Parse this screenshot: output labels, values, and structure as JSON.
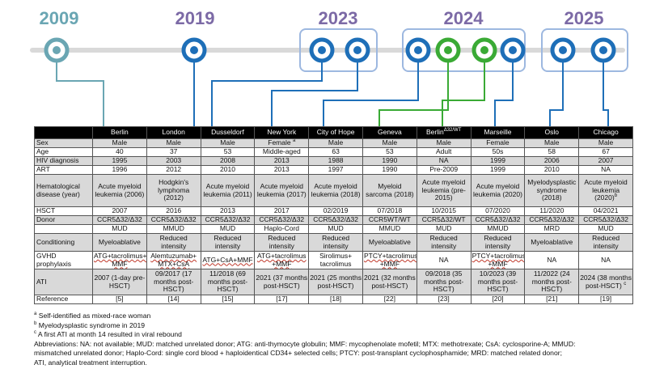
{
  "timeline": {
    "years": [
      {
        "label": "2009",
        "color": "#6aa6b3"
      },
      {
        "label": "2019",
        "color": "#7c6aa6"
      },
      {
        "label": "2023",
        "color": "#7c6aa6"
      },
      {
        "label": "2024",
        "color": "#7c6aa6"
      },
      {
        "label": "2025",
        "color": "#7c6aa6"
      }
    ],
    "colors": {
      "blue": "#1e6fb8",
      "green": "#3aaa35",
      "teal": "#6aa6b3",
      "box": "#9db8e0",
      "line": "#d0d0d0"
    }
  },
  "table": {
    "header": {
      "corner": "",
      "cities": [
        "Berlin",
        "London",
        "Dusseldorf",
        "New York",
        "City of Hope",
        "Geneva",
        "Berlin",
        "Marseille",
        "Oslo",
        "Chicago"
      ],
      "berlin2_sup": "Δ32/WT"
    },
    "rows": [
      {
        "label": "Sex",
        "cells": [
          "Male",
          "Male",
          "Male",
          "Female",
          "Male",
          "Male",
          "Male",
          "Female",
          "Male",
          "Male"
        ],
        "female_sup": "a"
      },
      {
        "label": "Age",
        "cells": [
          "40",
          "37",
          "53",
          "Middle-aged",
          "63",
          "53",
          "Adult",
          "50s",
          "58",
          "67"
        ]
      },
      {
        "label": "HIV diagnosis",
        "cells": [
          "1995",
          "2003",
          "2008",
          "2013",
          "1988",
          "1990",
          "NA",
          "1999",
          "2006",
          "2007"
        ]
      },
      {
        "label": "ART",
        "cells": [
          "1996",
          "2012",
          "2010",
          "2013",
          "1997",
          "1990",
          "Pre-2009",
          "1999",
          "2010",
          "NA"
        ]
      },
      {
        "label": "Hematological disease (year)",
        "cells": [
          "Acute myeloid leukemia (2006)",
          "Hodgkin's lymphoma (2012)",
          "Acute myeloid leukemia (2011)",
          "Acute myeloid leukemia (2017)",
          "Acute myeloid leukemia (2018)",
          "Myeloid sarcoma (2018)",
          "Acute myeloid leukemia (pre-2015)",
          "Acute myeloid leukemia (2020)",
          "Myelodysplastic syndrome (2018)",
          "Acute myeloid leukemia (2020)"
        ],
        "chicago_sup": "b"
      },
      {
        "label": "HSCT",
        "cells": [
          "2007",
          "2016",
          "2013",
          "2017",
          "02/2019",
          "07/2018",
          "10/2015",
          "07/2020",
          "11/2020",
          "04/2021"
        ]
      },
      {
        "label": "Donor",
        "cells": [
          "CCR5Δ32/Δ32",
          "CCR5Δ32/Δ32",
          "CCR5Δ32/Δ32",
          "CCR5Δ32/Δ32",
          "CCR5Δ32/Δ32",
          "CCR5WT/WT",
          "CCR5Δ32/WT",
          "CCR5Δ32/Δ32",
          "CCR5Δ32/Δ32",
          "CCR5Δ32/Δ32"
        ]
      },
      {
        "label": "",
        "cells": [
          "MUD",
          "MMUD",
          "MUD",
          "Haplo-Cord",
          "MUD",
          "MMUD",
          "MUD",
          "MMUD",
          "MRD",
          "MUD"
        ]
      },
      {
        "label": "Conditioning",
        "cells": [
          "Myeloablative",
          "Reduced intensity",
          "Reduced intensity",
          "Reduced intensity",
          "Reduced intensity",
          "Myeloablative",
          "Reduced intensity",
          "Reduced intensity",
          "Myeloablative",
          "Reduced intensity"
        ]
      },
      {
        "label": "GVHD prophylaxis",
        "cells": [
          "ATG+tacrolimus+ MMF",
          "Alemtuzumab+ MTX+CsA",
          "ATG+CsA+MMF",
          "ATG+tacrolimus +MMF",
          "Sirolimus+ tacrolimus",
          "PTCY+tacrolimus +MMF",
          "NA",
          "PTCY+tacrolimus +MMF",
          "NA",
          "NA"
        ]
      },
      {
        "label": "ATI",
        "cells": [
          "2007 (1-day pre-HSCT)",
          "09/2017 (17 months post-HSCT)",
          "11/2018 (69 months post-HSCT)",
          "2021 (37 months post-HSCT)",
          "2021 (25 months post-HSCT)",
          "2021 (32 months post-HSCT)",
          "09/2018 (35 months post-HSCT)",
          "10/2023 (39 months post-HSCT)",
          "11/2022 (24 months post-HSCT)",
          "2024 (38 months post-HSCT)"
        ],
        "chicago_sup": "c"
      },
      {
        "label": "Reference",
        "cells": [
          "[5]",
          "[14]",
          "[15]",
          "[17]",
          "[18]",
          "[22]",
          "[23]",
          "[20]",
          "[21]",
          "[19]"
        ]
      }
    ]
  },
  "notes": {
    "footnotes": [
      {
        "mark": "a",
        "text": "Self-identified as mixed-race woman"
      },
      {
        "mark": "b",
        "text": "Myelodysplastic syndrome in 2019"
      },
      {
        "mark": "c",
        "text": "A first ATI at month 14 resulted in viral rebound"
      }
    ],
    "abbreviations": [
      "Abbreviations: NA: not available; MUD: matched unrelated donor; ATG: anti-thymocyte globulin; MMF: mycophenolate mofetil; MTX: methotrexate; CsA: cyclosporine-A; MMUD:",
      "mismatched unrelated donor; Haplo-Cord: single cord blood + haploidentical CD34+ selected cells; PTCY: post-transplant cyclophosphamide; MRD: matched related donor;",
      "ATI, analytical treatment interruption."
    ]
  }
}
